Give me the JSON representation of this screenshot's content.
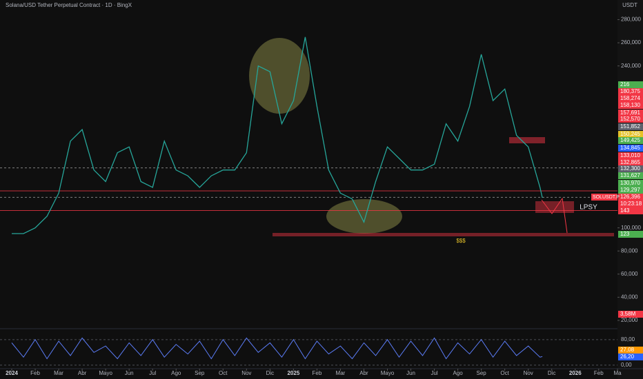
{
  "header": {
    "title": "Solana/USD Tether Perpetual Contract · 1D · BingX",
    "currency": "USDT"
  },
  "chart_data": {
    "type": "line",
    "x": [
      0,
      0.5,
      1,
      1.5,
      2,
      2.5,
      3,
      3.5,
      4,
      4.5,
      5,
      5.5,
      6,
      6.5,
      7,
      7.5,
      8,
      8.5,
      9,
      9.5,
      10,
      10.5,
      11,
      11.5,
      12,
      12.5,
      13,
      13.5,
      14,
      14.5,
      15,
      15.5,
      16,
      16.5,
      17,
      17.5,
      18,
      18.5,
      19,
      19.5,
      20,
      20.5,
      21,
      21.5,
      22,
      22.5,
      22.6
    ],
    "series": [
      {
        "color": "#26a69a",
        "values": [
          95,
          95,
          100,
          110,
          130,
          175,
          185,
          150,
          140,
          165,
          170,
          140,
          135,
          175,
          150,
          145,
          135,
          145,
          150,
          150,
          165,
          240,
          235,
          190,
          210,
          265,
          205,
          150,
          130,
          125,
          105,
          140,
          170,
          160,
          150,
          150,
          155,
          190,
          175,
          205,
          250,
          210,
          220,
          180,
          170,
          135,
          126
        ]
      }
    ],
    "xlim": [
      -0.5,
      25.8
    ],
    "ylim": [
      14,
      297
    ],
    "xticks": [
      {
        "value": 0,
        "label": "2024"
      },
      {
        "value": 1,
        "label": "Feb"
      },
      {
        "value": 2,
        "label": "Mar"
      },
      {
        "value": 3,
        "label": "Abr"
      },
      {
        "value": 4,
        "label": "Mayo"
      },
      {
        "value": 5,
        "label": "Jun"
      },
      {
        "value": 6,
        "label": "Jul"
      },
      {
        "value": 7,
        "label": "Ago"
      },
      {
        "value": 8,
        "label": "Sep"
      },
      {
        "value": 9,
        "label": "Oct"
      },
      {
        "value": 10,
        "label": "Nov"
      },
      {
        "value": 11,
        "label": "Dic"
      },
      {
        "value": 12,
        "label": "2025"
      },
      {
        "value": 13,
        "label": "Feb"
      },
      {
        "value": 14,
        "label": "Mar"
      },
      {
        "value": 15,
        "label": "Abr"
      },
      {
        "value": 16,
        "label": "Mayo"
      },
      {
        "value": 17,
        "label": "Jun"
      },
      {
        "value": 18,
        "label": "Jul"
      },
      {
        "value": 19,
        "label": "Ago"
      },
      {
        "value": 20,
        "label": "Sep"
      },
      {
        "value": 21,
        "label": "Oct"
      },
      {
        "value": 22,
        "label": "Nov"
      },
      {
        "value": 23,
        "label": "Dic"
      },
      {
        "value": 24,
        "label": "2026"
      },
      {
        "value": 25,
        "label": "Feb"
      },
      {
        "value": 25.8,
        "label": "Ma"
      }
    ],
    "yticks": [
      {
        "value": 280,
        "label": "280,000"
      },
      {
        "value": 260,
        "label": "260,000"
      },
      {
        "value": 240,
        "label": "240,000"
      },
      {
        "value": 100,
        "label": "100,000"
      },
      {
        "value": 80,
        "label": "80,000"
      },
      {
        "value": 60,
        "label": "60,000"
      },
      {
        "value": 40,
        "label": "40,000"
      },
      {
        "value": 20,
        "label": "20,000"
      }
    ],
    "levels": [
      {
        "value": 151.85,
        "color": "#9e9e9e",
        "dash": true
      },
      {
        "value": 132,
        "color": "#f23645",
        "dash": false
      },
      {
        "value": 126.4,
        "color": "#9e9e9e",
        "dash": true
      },
      {
        "value": 115,
        "color": "#f23645",
        "dash": false
      }
    ],
    "grid": false,
    "oscillator": {
      "color": "#5b7cf6",
      "values": [
        70,
        25,
        80,
        20,
        75,
        30,
        85,
        40,
        60,
        20,
        70,
        30,
        80,
        25,
        65,
        35,
        75,
        20,
        80,
        30,
        85,
        40,
        70,
        25,
        80,
        20,
        75,
        35,
        60,
        20,
        70,
        30,
        80,
        25,
        75,
        30,
        85,
        20,
        70,
        35,
        80,
        25,
        75,
        30,
        60,
        25,
        27
      ],
      "ylim": [
        -11,
        112
      ],
      "yticks": [
        {
          "value": 80,
          "label": "80,00"
        },
        {
          "value": 0,
          "label": "0,00"
        }
      ]
    },
    "price_labels": [
      {
        "text": "216",
        "color": "#4caf50"
      },
      {
        "text": "180,375",
        "color": "#f23645"
      },
      {
        "text": "158,274",
        "color": "#f23645"
      },
      {
        "text": "158,130",
        "color": "#f23645"
      },
      {
        "text": "157,691",
        "color": "#f23645"
      },
      {
        "text": "152,570",
        "color": "#f23645"
      },
      {
        "text": "151,852",
        "color": "#5d606b"
      },
      {
        "text": "150,245",
        "color": "#e6c229"
      },
      {
        "text": "149,425",
        "color": "#4caf50"
      },
      {
        "text": "134,845",
        "color": "#2962ff"
      },
      {
        "text": "133,010",
        "color": "#f23645"
      },
      {
        "text": "132,865",
        "color": "#f23645"
      },
      {
        "text": "132,300",
        "color": "#5d606b"
      },
      {
        "text": "131,627",
        "color": "#4caf50"
      },
      {
        "text": "130,970",
        "color": "#4caf50"
      },
      {
        "text": "129,297",
        "color": "#4caf50"
      },
      {
        "text": "126,396",
        "color": "#f23645"
      },
      {
        "text": "10:23:18",
        "color": "#f23645"
      },
      {
        "text": "143",
        "color": "#f23645"
      },
      {
        "text": "123",
        "color": "#4caf50"
      },
      {
        "text": "3,58M",
        "color": "#f23645"
      },
      {
        "text": "27,08",
        "color": "#ff9800"
      },
      {
        "text": "26,20",
        "color": "#2962ff"
      }
    ],
    "symbol_label": "SOLUSDT.P",
    "annotations": {
      "lpsy": "LPSY",
      "liquidity": "$$$"
    }
  }
}
